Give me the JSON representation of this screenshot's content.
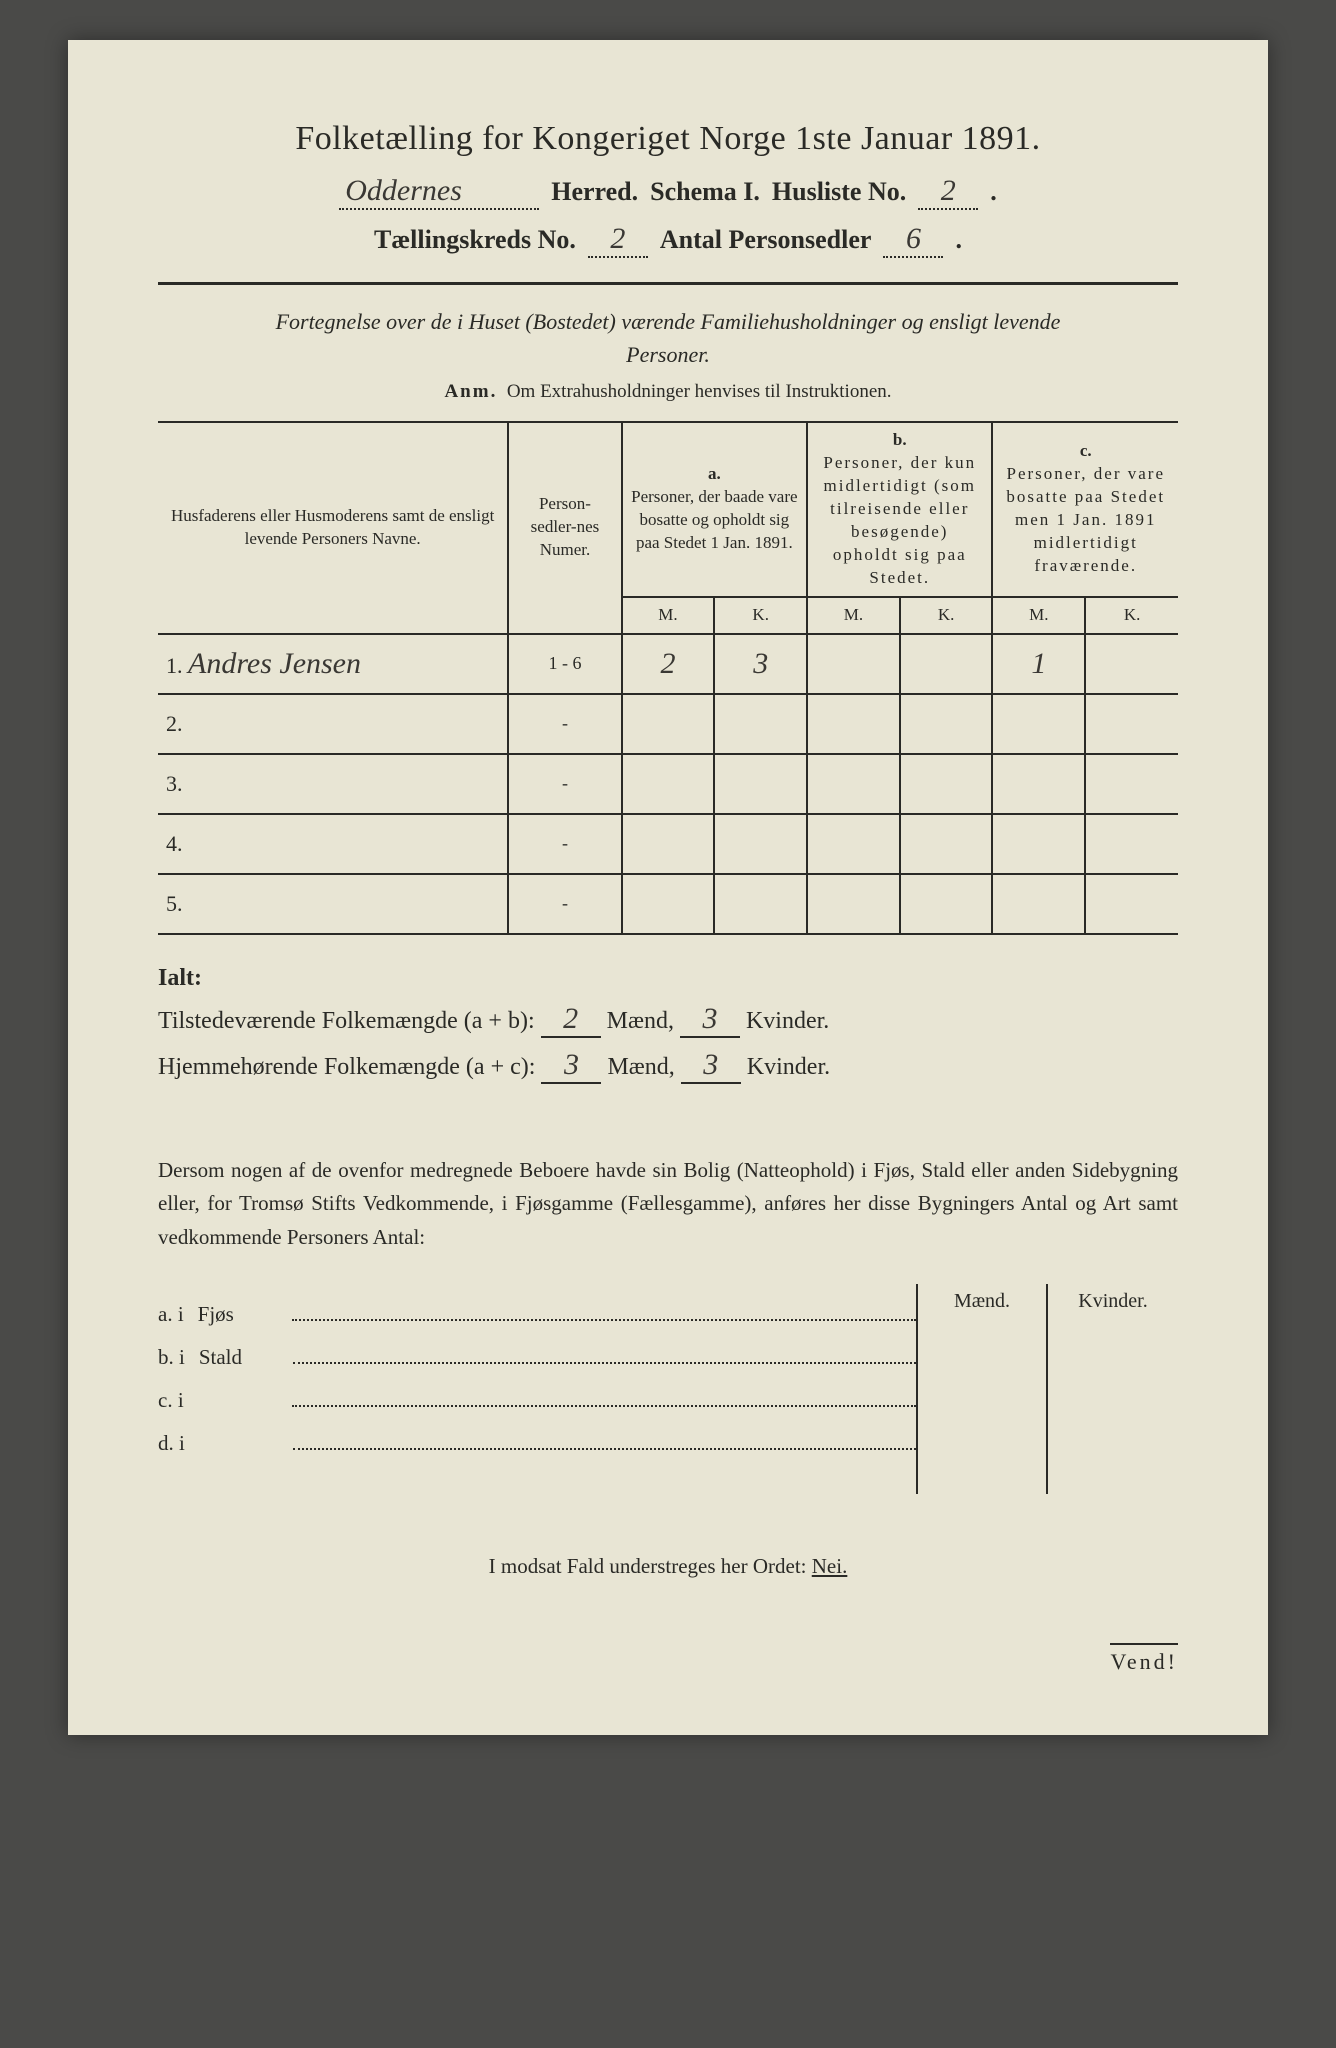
{
  "title": "Folketælling for Kongeriget Norge 1ste Januar 1891.",
  "header": {
    "herred_value": "Oddernes",
    "herred_label": "Herred.",
    "schema_label": "Schema I.",
    "husliste_label": "Husliste No.",
    "husliste_no": "2",
    "kreds_label": "Tællingskreds No.",
    "kreds_no": "2",
    "antal_label": "Antal Personsedler",
    "antal_val": "6"
  },
  "subtitle": "Fortegnelse over de i Huset (Bostedet) værende Familiehusholdninger og ensligt levende Personer.",
  "anm": {
    "prefix": "Anm.",
    "text": "Om Extrahusholdninger henvises til Instruktionen."
  },
  "table": {
    "head_names": "Husfaderens eller Husmoderens samt de ensligt levende Personers Navne.",
    "head_num": "Person-sedler-nes Numer.",
    "col_a_label": "a.",
    "col_a_text": "Personer, der baade vare bosatte og opholdt sig paa Stedet 1 Jan. 1891.",
    "col_b_label": "b.",
    "col_b_text": "Personer, der kun midlertidigt (som tilreisende eller besøgende) opholdt sig paa Stedet.",
    "col_c_label": "c.",
    "col_c_text": "Personer, der vare bosatte paa Stedet men 1 Jan. 1891 midlertidigt fraværende.",
    "mk_m": "M.",
    "mk_k": "K.",
    "rows": [
      {
        "n": "1.",
        "name": "Andres Jensen",
        "num": "1 - 6",
        "a_m": "2",
        "a_k": "3",
        "b_m": "",
        "b_k": "",
        "c_m": "1",
        "c_k": ""
      },
      {
        "n": "2.",
        "name": "",
        "num": "-",
        "a_m": "",
        "a_k": "",
        "b_m": "",
        "b_k": "",
        "c_m": "",
        "c_k": ""
      },
      {
        "n": "3.",
        "name": "",
        "num": "-",
        "a_m": "",
        "a_k": "",
        "b_m": "",
        "b_k": "",
        "c_m": "",
        "c_k": ""
      },
      {
        "n": "4.",
        "name": "",
        "num": "-",
        "a_m": "",
        "a_k": "",
        "b_m": "",
        "b_k": "",
        "c_m": "",
        "c_k": ""
      },
      {
        "n": "5.",
        "name": "",
        "num": "-",
        "a_m": "",
        "a_k": "",
        "b_m": "",
        "b_k": "",
        "c_m": "",
        "c_k": ""
      }
    ]
  },
  "totals": {
    "ialt": "Ialt:",
    "line1_label": "Tilstedeværende Folkemængde (a + b):",
    "line1_m": "2",
    "line1_k": "3",
    "line2_label": "Hjemmehørende Folkemængde (a + c):",
    "line2_m": "3",
    "line2_k": "3",
    "maend": "Mænd,",
    "kvinder": "Kvinder."
  },
  "paragraph": "Dersom nogen af de ovenfor medregnede Beboere havde sin Bolig (Natteophold) i Fjøs, Stald eller anden Sidebygning eller, for Tromsø Stifts Vedkommende, i Fjøsgamme (Fællesgamme), anføres her disse Bygningers Antal og Art samt vedkommende Personers Antal:",
  "bygning": {
    "hdr_m": "Mænd.",
    "hdr_k": "Kvinder.",
    "rows": [
      {
        "l": "a.  i",
        "t": "Fjøs"
      },
      {
        "l": "b.  i",
        "t": "Stald"
      },
      {
        "l": "c.  i",
        "t": ""
      },
      {
        "l": "d.  i",
        "t": ""
      }
    ]
  },
  "modsat": {
    "text": "I modsat Fald understreges her Ordet:",
    "nei": "Nei."
  },
  "vend": "Vend!"
}
